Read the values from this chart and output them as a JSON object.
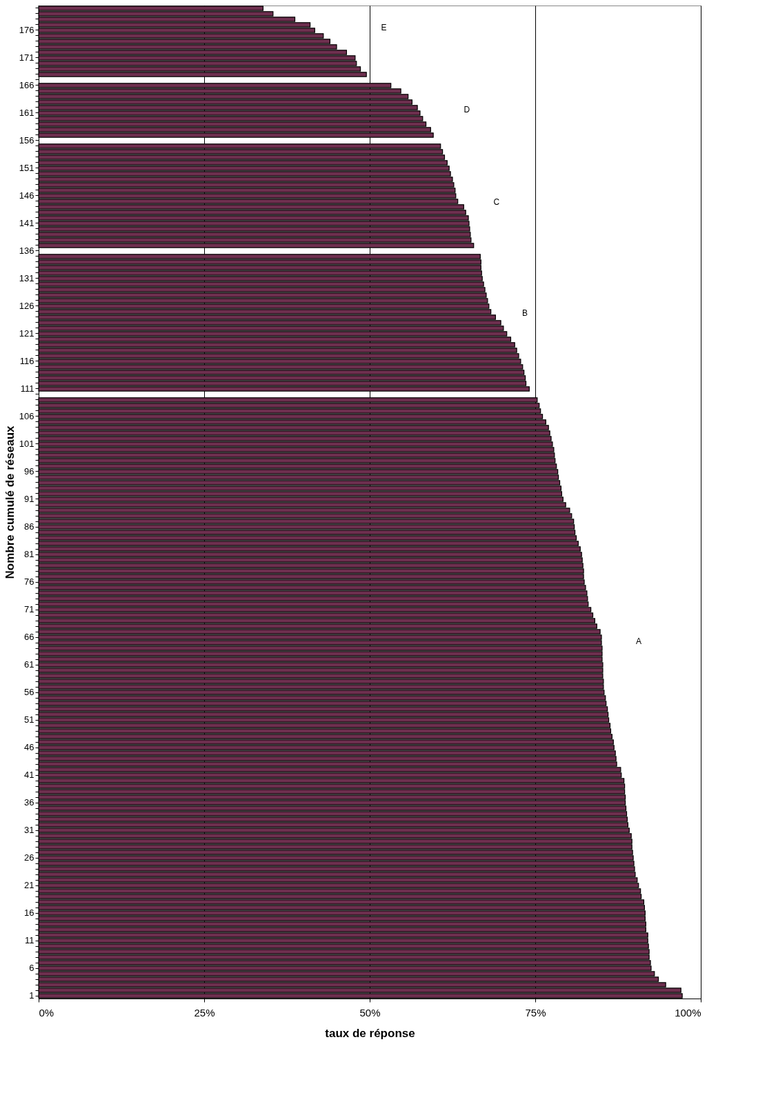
{
  "chart_data": {
    "type": "bar",
    "orientation": "horizontal",
    "xlabel": "taux de réponse",
    "ylabel": "Nombre cumulé de réseaux",
    "categories": [
      null,
      null,
      null,
      null,
      "176",
      null,
      null,
      null,
      null,
      "171",
      null,
      null,
      null,
      null,
      "166",
      null,
      null,
      null,
      null,
      "161",
      null,
      null,
      null,
      null,
      "156",
      null,
      null,
      null,
      null,
      "151",
      null,
      null,
      null,
      null,
      "146",
      null,
      null,
      null,
      null,
      "141",
      null,
      null,
      null,
      null,
      "136",
      null,
      null,
      null,
      null,
      "131",
      null,
      null,
      null,
      null,
      "126",
      null,
      null,
      null,
      null,
      "121",
      null,
      null,
      null,
      null,
      "116",
      null,
      null,
      null,
      null,
      "111",
      null,
      null,
      null,
      null,
      "106",
      null,
      null,
      null,
      null,
      "101",
      null,
      null,
      null,
      null,
      "96",
      null,
      null,
      null,
      null,
      "91",
      null,
      null,
      null,
      null,
      "86",
      null,
      null,
      null,
      null,
      "81",
      null,
      null,
      null,
      null,
      "76",
      null,
      null,
      null,
      null,
      "71",
      null,
      null,
      null,
      null,
      "66",
      null,
      null,
      null,
      null,
      "61",
      null,
      null,
      null,
      null,
      "56",
      null,
      null,
      null,
      null,
      "51",
      null,
      null,
      null,
      null,
      "46",
      null,
      null,
      null,
      null,
      "41",
      null,
      null,
      null,
      null,
      "36",
      null,
      null,
      null,
      null,
      "31",
      null,
      null,
      null,
      null,
      "26",
      null,
      null,
      null,
      null,
      "21",
      null,
      null,
      null,
      null,
      "16",
      null,
      null,
      null,
      null,
      "11",
      null,
      null,
      null,
      null,
      "6",
      null,
      null,
      null,
      null,
      "1"
    ],
    "values": [
      33.9,
      35.4,
      38.7,
      41.0,
      41.7,
      43.0,
      44.0,
      45.0,
      46.5,
      47.8,
      48.0,
      48.6,
      49.5,
      null,
      53.2,
      54.7,
      55.8,
      56.4,
      57.2,
      57.6,
      58.0,
      58.5,
      59.2,
      59.6,
      null,
      60.7,
      61.0,
      61.3,
      61.7,
      62.0,
      62.2,
      62.5,
      62.7,
      62.9,
      63.0,
      63.3,
      64.2,
      64.5,
      64.9,
      65.0,
      65.1,
      65.2,
      65.3,
      65.7,
      null,
      66.7,
      66.8,
      66.8,
      66.9,
      67.0,
      67.2,
      67.4,
      67.6,
      67.8,
      68.0,
      68.3,
      69.0,
      69.8,
      70.2,
      70.7,
      71.3,
      71.9,
      72.2,
      72.5,
      72.8,
      73.1,
      73.3,
      73.5,
      73.6,
      74.1,
      null,
      75.3,
      75.6,
      75.8,
      76.1,
      76.6,
      77.0,
      77.2,
      77.4,
      77.6,
      77.8,
      77.9,
      78.0,
      78.2,
      78.4,
      78.5,
      78.7,
      78.9,
      79.0,
      79.2,
      79.6,
      80.2,
      80.5,
      80.8,
      80.9,
      81.0,
      81.2,
      81.5,
      81.8,
      82.0,
      82.1,
      82.2,
      82.3,
      82.3,
      82.4,
      82.6,
      82.8,
      82.9,
      83.0,
      83.4,
      83.7,
      84.0,
      84.3,
      84.8,
      85.0,
      85.0,
      85.1,
      85.1,
      85.1,
      85.2,
      85.2,
      85.2,
      85.3,
      85.3,
      85.4,
      85.6,
      85.7,
      85.9,
      86.0,
      86.1,
      86.3,
      86.4,
      86.6,
      86.8,
      86.9,
      87.1,
      87.2,
      87.3,
      87.9,
      88.0,
      88.4,
      88.5,
      88.5,
      88.6,
      88.6,
      88.7,
      88.8,
      88.9,
      89.0,
      89.2,
      89.5,
      89.6,
      89.6,
      89.7,
      89.8,
      89.9,
      90.0,
      90.1,
      90.4,
      90.6,
      90.9,
      91.0,
      91.4,
      91.5,
      91.6,
      91.6,
      91.7,
      91.7,
      92.0,
      92.0,
      92.1,
      92.2,
      92.2,
      92.4,
      92.5,
      93.0,
      93.6,
      94.7,
      97.0,
      97.2
    ],
    "color": "#6e2f4f",
    "xlim": [
      0,
      100
    ],
    "xticks": [
      {
        "value": 0,
        "label": "0%"
      },
      {
        "value": 25,
        "label": "25%"
      },
      {
        "value": 50,
        "label": "50%"
      },
      {
        "value": 75,
        "label": "75%"
      },
      {
        "value": 100,
        "label": "100%"
      }
    ],
    "grid": "x",
    "annotations": [
      "E",
      "D",
      "C",
      "B",
      "A"
    ]
  }
}
